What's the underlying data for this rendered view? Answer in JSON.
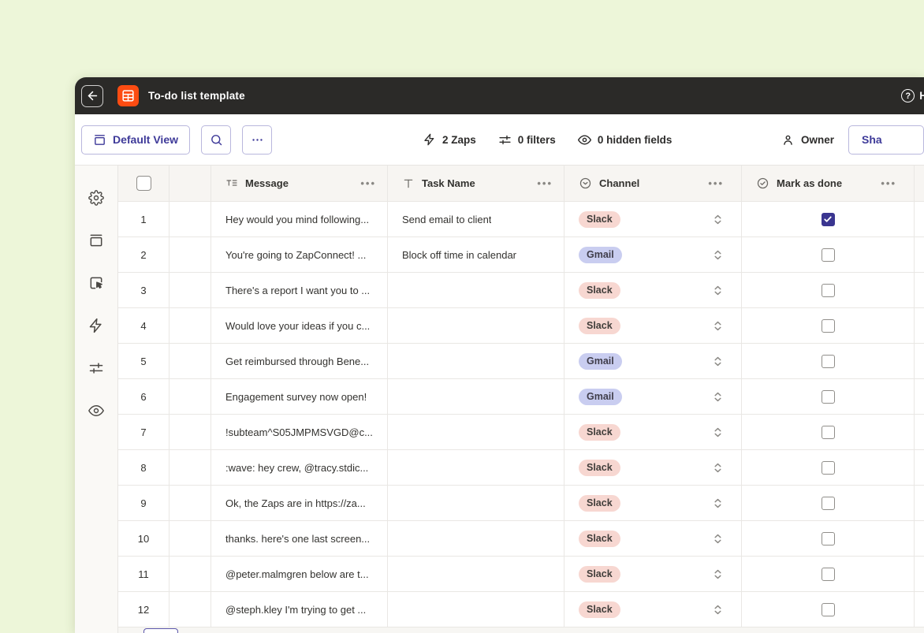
{
  "colors": {
    "accent": "#3e3a99",
    "orange": "#fd4c12",
    "checked": "#3a3590"
  },
  "titlebar": {
    "title": "To-do list template",
    "help_label": "H"
  },
  "toolbar": {
    "view_button": "Default View",
    "zaps": "2 Zaps",
    "filters": "0 filters",
    "hidden_fields": "0 hidden fields",
    "owner": "Owner",
    "share": "Sha"
  },
  "table": {
    "columns": [
      {
        "label": "Message"
      },
      {
        "label": "Task Name"
      },
      {
        "label": "Channel"
      },
      {
        "label": "Mark as done"
      }
    ],
    "menu_glyph": "•••",
    "badge_colors": {
      "Slack": {
        "bg": "#f7d7d1",
        "text": "#403d3a"
      },
      "Gmail": {
        "bg": "#c9cdf0",
        "text": "#3f3d4a"
      }
    },
    "rows": [
      {
        "num": "1",
        "message": "Hey would you mind following...",
        "task": "Send email to client",
        "channel": "Slack",
        "done": true
      },
      {
        "num": "2",
        "message": "You're going to ZapConnect! ...",
        "task": "Block off time in calendar",
        "channel": "Gmail",
        "done": false
      },
      {
        "num": "3",
        "message": "There's a report I want you to ...",
        "task": "",
        "channel": "Slack",
        "done": false
      },
      {
        "num": "4",
        "message": "Would love your ideas if you c...",
        "task": "",
        "channel": "Slack",
        "done": false
      },
      {
        "num": "5",
        "message": "Get reimbursed through Bene...",
        "task": "",
        "channel": "Gmail",
        "done": false
      },
      {
        "num": "6",
        "message": "Engagement survey now open!",
        "task": "",
        "channel": "Gmail",
        "done": false
      },
      {
        "num": "7",
        "message": "!subteam^S05JMPMSVGD@c...",
        "task": "",
        "channel": "Slack",
        "done": false
      },
      {
        "num": "8",
        "message": ":wave: hey crew, @tracy.stdic...",
        "task": "",
        "channel": "Slack",
        "done": false
      },
      {
        "num": "9",
        "message": "Ok, the Zaps are in https://za...",
        "task": "",
        "channel": "Slack",
        "done": false
      },
      {
        "num": "10",
        "message": "thanks. here's one last screen...",
        "task": "",
        "channel": "Slack",
        "done": false
      },
      {
        "num": "11",
        "message": "@peter.malmgren below are t...",
        "task": "",
        "channel": "Slack",
        "done": false
      },
      {
        "num": "12",
        "message": "@steph.kley I'm trying to get ...",
        "task": "",
        "channel": "Slack",
        "done": false
      }
    ]
  }
}
